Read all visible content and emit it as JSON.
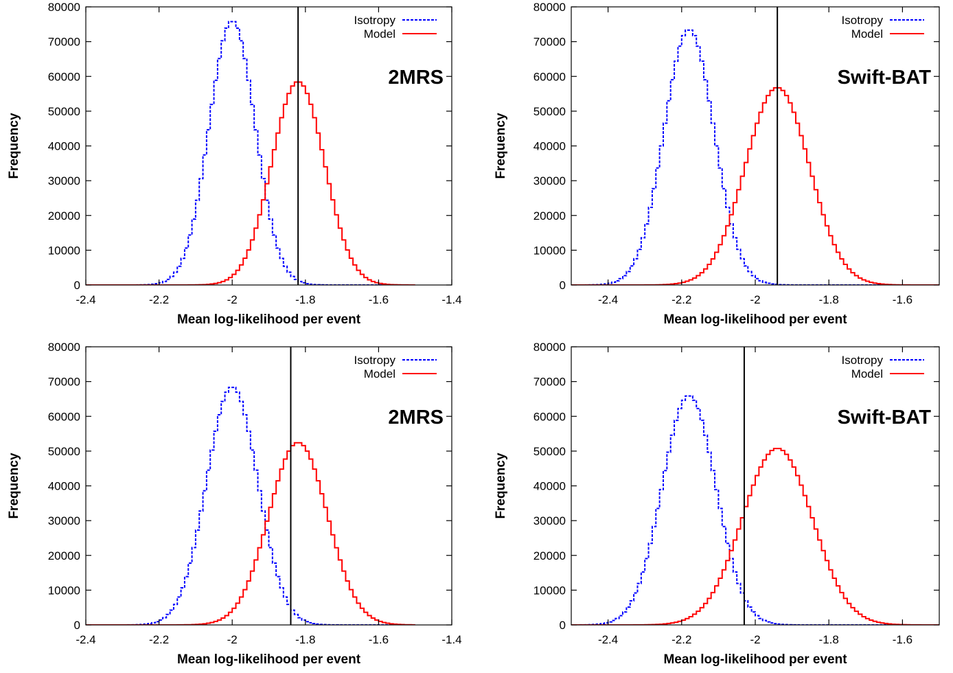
{
  "chart_data": [
    {
      "type": "histogram",
      "label": "2MRS",
      "xlabel": "Mean log-likelihood per event",
      "ylabel": "Frequency",
      "xlim": [
        -2.4,
        -1.4
      ],
      "ylim": [
        0,
        80000
      ],
      "xticks": [
        -2.4,
        -2.2,
        -2,
        -1.8,
        -1.6,
        -1.4
      ],
      "xtick_labels": [
        "-2.4",
        "-2.2",
        "-2",
        "-1.8",
        "-1.6",
        "-1.4"
      ],
      "yticks": [
        0,
        10000,
        20000,
        30000,
        40000,
        50000,
        60000,
        70000,
        80000
      ],
      "ytick_labels": [
        "0",
        "10000",
        "20000",
        "30000",
        "40000",
        "50000",
        "60000",
        "70000",
        "80000"
      ],
      "observed_x": -1.82,
      "legend_position": "top-right",
      "series": [
        {
          "name": "Isotropy",
          "color": "#0000ff",
          "dash": true,
          "mean": -2.0,
          "sigma": 0.063,
          "peak": 76000,
          "bin": 0.01,
          "xmin": -2.4,
          "xmax": -1.5
        },
        {
          "name": "Model",
          "color": "#ff0000",
          "dash": false,
          "mean": -1.82,
          "sigma": 0.072,
          "peak": 58500,
          "bin": 0.01,
          "xmin": -2.4,
          "xmax": -1.5
        }
      ]
    },
    {
      "type": "histogram",
      "label": "Swift-BAT",
      "xlabel": "Mean log-likelihood per event",
      "ylabel": "Frequency",
      "xlim": [
        -2.5,
        -1.5
      ],
      "ylim": [
        0,
        80000
      ],
      "xticks": [
        -2.4,
        -2.2,
        -2,
        -1.8,
        -1.6
      ],
      "xtick_labels": [
        "-2.4",
        "-2.2",
        "-2",
        "-1.8",
        "-1.6"
      ],
      "yticks": [
        0,
        10000,
        20000,
        30000,
        40000,
        50000,
        60000,
        70000,
        80000
      ],
      "ytick_labels": [
        "0",
        "10000",
        "20000",
        "30000",
        "40000",
        "50000",
        "60000",
        "70000",
        "80000"
      ],
      "observed_x": -1.94,
      "legend_position": "top-right",
      "series": [
        {
          "name": "Isotropy",
          "color": "#0000ff",
          "dash": true,
          "mean": -2.18,
          "sigma": 0.068,
          "peak": 73500,
          "bin": 0.01,
          "xmin": -2.5,
          "xmax": -1.5
        },
        {
          "name": "Model",
          "color": "#ff0000",
          "dash": false,
          "mean": -1.94,
          "sigma": 0.087,
          "peak": 56800,
          "bin": 0.01,
          "xmin": -2.5,
          "xmax": -1.5
        }
      ]
    },
    {
      "type": "histogram",
      "label": "2MRS",
      "xlabel": "Mean log-likelihood per event",
      "ylabel": "Frequency",
      "xlim": [
        -2.4,
        -1.4
      ],
      "ylim": [
        0,
        80000
      ],
      "xticks": [
        -2.4,
        -2.2,
        -2,
        -1.8,
        -1.6,
        -1.4
      ],
      "xtick_labels": [
        "-2.4",
        "-2.2",
        "-2",
        "-1.8",
        "-1.6",
        "-1.4"
      ],
      "yticks": [
        0,
        10000,
        20000,
        30000,
        40000,
        50000,
        60000,
        70000,
        80000
      ],
      "ytick_labels": [
        "0",
        "10000",
        "20000",
        "30000",
        "40000",
        "50000",
        "60000",
        "70000",
        "80000"
      ],
      "observed_x": -1.84,
      "legend_position": "top-right",
      "series": [
        {
          "name": "Isotropy",
          "color": "#0000ff",
          "dash": true,
          "mean": -2.0,
          "sigma": 0.07,
          "peak": 68500,
          "bin": 0.01,
          "xmin": -2.4,
          "xmax": -1.5
        },
        {
          "name": "Model",
          "color": "#ff0000",
          "dash": false,
          "mean": -1.82,
          "sigma": 0.08,
          "peak": 52500,
          "bin": 0.01,
          "xmin": -2.4,
          "xmax": -1.5
        }
      ]
    },
    {
      "type": "histogram",
      "label": "Swift-BAT",
      "xlabel": "Mean log-likelihood per event",
      "ylabel": "Frequency",
      "xlim": [
        -2.5,
        -1.5
      ],
      "ylim": [
        0,
        80000
      ],
      "xticks": [
        -2.4,
        -2.2,
        -2,
        -1.8,
        -1.6
      ],
      "xtick_labels": [
        "-2.4",
        "-2.2",
        "-2",
        "-1.8",
        "-1.6"
      ],
      "yticks": [
        0,
        10000,
        20000,
        30000,
        40000,
        50000,
        60000,
        70000,
        80000
      ],
      "ytick_labels": [
        "0",
        "10000",
        "20000",
        "30000",
        "40000",
        "50000",
        "60000",
        "70000",
        "80000"
      ],
      "observed_x": -2.03,
      "legend_position": "top-right",
      "series": [
        {
          "name": "Isotropy",
          "color": "#0000ff",
          "dash": true,
          "mean": -2.18,
          "sigma": 0.073,
          "peak": 66000,
          "bin": 0.01,
          "xmin": -2.5,
          "xmax": -1.5
        },
        {
          "name": "Model",
          "color": "#ff0000",
          "dash": false,
          "mean": -1.94,
          "sigma": 0.095,
          "peak": 50800,
          "bin": 0.01,
          "xmin": -2.5,
          "xmax": -1.5
        }
      ]
    }
  ]
}
